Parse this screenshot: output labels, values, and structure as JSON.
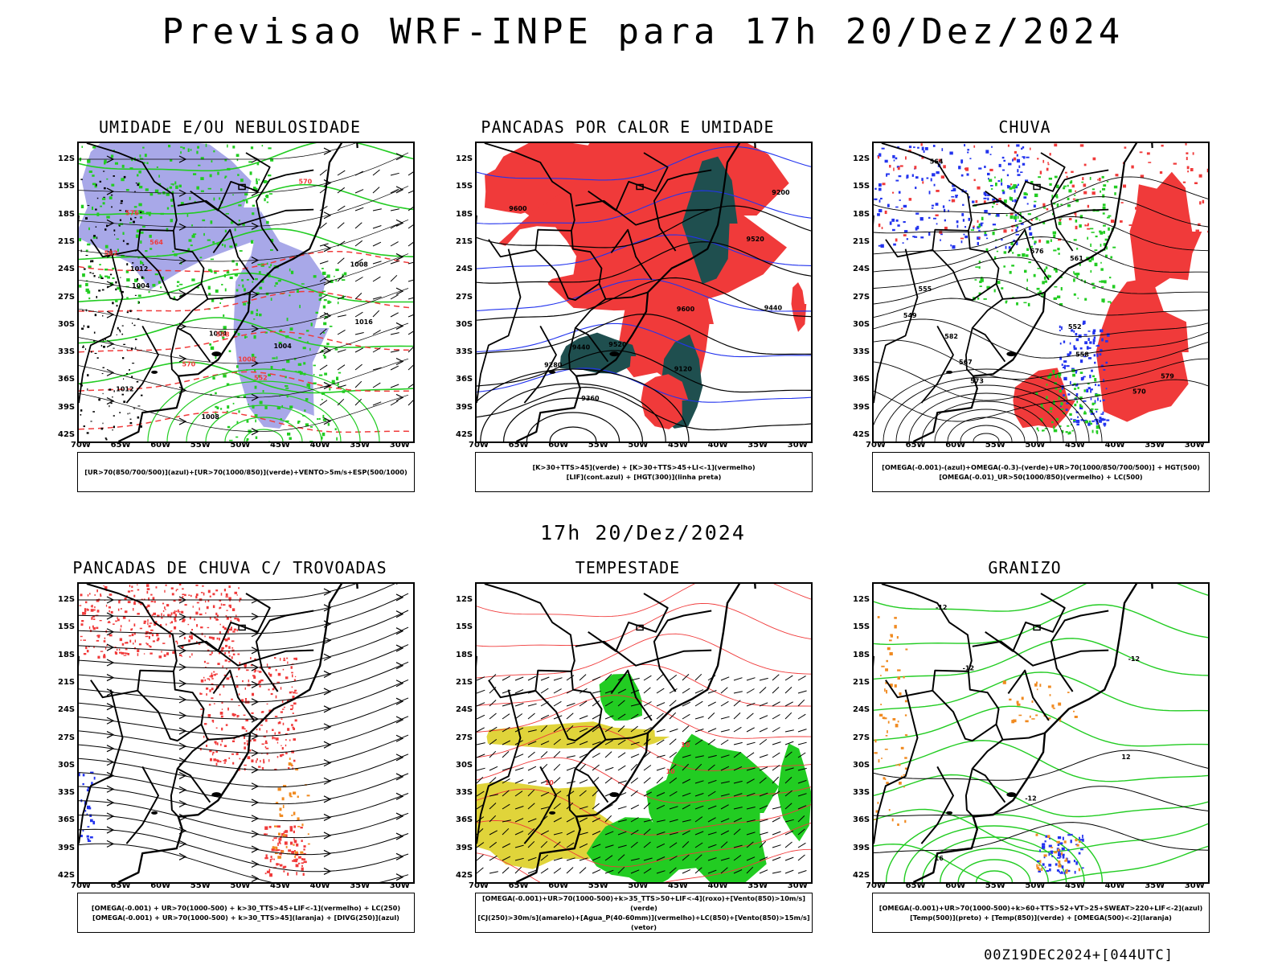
{
  "main_title": "Previsao WRF-INPE  para 17h 20/Dez/2024",
  "mid_title": "17h 20/Dez/2024",
  "footer": "00Z19DEC2024+[044UTC]",
  "lat_labels": [
    "12S",
    "15S",
    "18S",
    "21S",
    "24S",
    "27S",
    "30S",
    "33S",
    "36S",
    "39S",
    "42S"
  ],
  "lon_labels": [
    "70W",
    "65W",
    "60W",
    "55W",
    "50W",
    "45W",
    "40W",
    "35W",
    "30W"
  ],
  "panels": [
    {
      "title": "UMIDADE E/OU NEBULOSIDADE",
      "legend": [
        "[UR>70(850/700/500)](azul)+[UR>70(1000/850)](verde)+VENTO>5m/s+ESP(500/1000)"
      ],
      "contour_labels": [
        "1004",
        "1008",
        "1012",
        "1016",
        "1008",
        "1004",
        "1012",
        "1004",
        "1008",
        "576",
        "570",
        "582",
        "564",
        "558",
        "552",
        "570",
        "576",
        "1008",
        "1016"
      ]
    },
    {
      "title": "PANCADAS POR CALOR E UMIDADE",
      "legend": [
        "[K>30+TTS>45](verde) + [K>30+TTS>45+LI<-1](vermelho)",
        "[LIF](cont.azul) + [HGT(300)](linha preta)"
      ],
      "contour_labels": [
        "9600",
        "9520",
        "9440",
        "9360",
        "9280",
        "9200",
        "9120",
        "9600",
        "9520",
        "9440"
      ]
    },
    {
      "title": "CHUVA",
      "legend": [
        "[OMEGA(-0.001)-(azul)+OMEGA(-0.3)-(verde)+UR>70(1000/850/700/500)] + HGT(500)",
        "[OMEGA(-0.01)_UR>50(1000/850)(vermelho) + LC(500)"
      ],
      "contour_labels": [
        "582",
        "579",
        "576",
        "573",
        "570",
        "567",
        "564",
        "561",
        "558",
        "555",
        "552",
        "549"
      ]
    },
    {
      "title": "PANCADAS DE CHUVA C/ TROVOADAS",
      "legend": [
        "[OMEGA(-0.001) + UR>70(1000-500) + k>30_TTS>45+LIF<-1](vermelho) + LC(250)",
        "[OMEGA(-0.001) + UR>70(1000-500) + k>30_TTS>45](laranja) + [DIVG(250)](azul)"
      ],
      "contour_labels": []
    },
    {
      "title": "TEMPESTADE",
      "legend": [
        "[OMEGA(-0.001)+UR>70(1000-500)+k>35_TTS>50+LIF<-4](roxo)+[Vento(850)>10m/s](verde)",
        "[CJ(250)>30m/s](amarelo)+[Agua_P(40-60mm)](vermelho)+LC(850)+[Vento(850)>15m/s](vetor)"
      ],
      "contour_labels": [
        "10",
        "10",
        "10"
      ]
    },
    {
      "title": "GRANIZO",
      "legend": [
        "[OMEGA(-0.001)+UR>70(1000-500)+k>60+TTS>52+VT>25+SWEAT>220+LIF<-2](azul)",
        "[Temp(500)](preto) + [Temp(850)](verde) + [OMEGA(500)<-2](laranja)"
      ],
      "contour_labels": [
        "-12",
        "-12",
        "-12",
        "-12",
        "16",
        "12"
      ]
    }
  ],
  "colors": {
    "red": "#f03a3a",
    "green": "#22cc22",
    "blue": "#2233ee",
    "lavender": "#a8a8e8",
    "teal": "#1f4f4f",
    "yellow": "#e0d43a",
    "orange": "#f08a20",
    "purple": "#a020c0"
  }
}
